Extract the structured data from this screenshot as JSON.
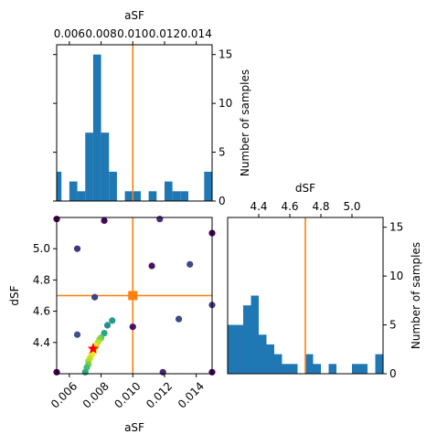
{
  "chart_data": [
    {
      "type": "bar",
      "panel": "histogram-aSF",
      "title": "",
      "xlabel": "aSF",
      "ylabel": "Number of samples",
      "xlim": [
        0.0052,
        0.015
      ],
      "ylim": [
        0,
        16
      ],
      "xticks": [
        {
          "value": 0.006,
          "label": "0.006"
        },
        {
          "value": 0.008,
          "label": "0.008"
        },
        {
          "value": 0.01,
          "label": "0.010"
        },
        {
          "value": 0.012,
          "label": "0.012"
        },
        {
          "value": 0.014,
          "label": "0.014"
        }
      ],
      "yticks": [
        {
          "value": 0,
          "label": "0"
        },
        {
          "value": 5,
          "label": "5"
        },
        {
          "value": 10,
          "label": "10"
        },
        {
          "value": 15,
          "label": "15"
        }
      ],
      "bin_edges": [
        0.005,
        0.0055,
        0.006,
        0.0065,
        0.007,
        0.0075,
        0.008,
        0.0085,
        0.009,
        0.0095,
        0.01,
        0.0105,
        0.011,
        0.0115,
        0.012,
        0.0125,
        0.013,
        0.0135,
        0.014,
        0.0145,
        0.015
      ],
      "counts": [
        3,
        0,
        2,
        1,
        7,
        15,
        7,
        3,
        0,
        1,
        1,
        0,
        1,
        0,
        2,
        1,
        1,
        0,
        0,
        3
      ],
      "reference_line": 0.01,
      "bar_color": "#1f77b4",
      "line_color": "#ff7f0e"
    },
    {
      "type": "scatter",
      "panel": "scatter-aSF-dSF",
      "title": "",
      "xlabel": "aSF",
      "ylabel": "dSF",
      "xlim": [
        0.0052,
        0.015
      ],
      "ylim": [
        4.2,
        5.2
      ],
      "xticks": [
        {
          "value": 0.006,
          "label": "0.006"
        },
        {
          "value": 0.008,
          "label": "0.008"
        },
        {
          "value": 0.01,
          "label": "0.010"
        },
        {
          "value": 0.012,
          "label": "0.012"
        },
        {
          "value": 0.014,
          "label": "0.014"
        }
      ],
      "yticks": [
        {
          "value": 4.4,
          "label": "4.4"
        },
        {
          "value": 4.6,
          "label": "4.6"
        },
        {
          "value": 4.8,
          "label": "4.8"
        },
        {
          "value": 5.0,
          "label": "5.0"
        }
      ],
      "points": [
        {
          "x": 0.0052,
          "y": 5.19,
          "c": 0.0
        },
        {
          "x": 0.0082,
          "y": 5.18,
          "c": 0.02
        },
        {
          "x": 0.0117,
          "y": 5.19,
          "c": 0.12
        },
        {
          "x": 0.015,
          "y": 5.1,
          "c": 0.0
        },
        {
          "x": 0.0065,
          "y": 5.0,
          "c": 0.15
        },
        {
          "x": 0.0112,
          "y": 4.89,
          "c": 0.05
        },
        {
          "x": 0.0136,
          "y": 4.9,
          "c": 0.22
        },
        {
          "x": 0.0076,
          "y": 4.69,
          "c": 0.2
        },
        {
          "x": 0.015,
          "y": 4.64,
          "c": 0.18
        },
        {
          "x": 0.01,
          "y": 4.5,
          "c": 0.05
        },
        {
          "x": 0.0129,
          "y": 4.55,
          "c": 0.22
        },
        {
          "x": 0.0065,
          "y": 4.45,
          "c": 0.25
        },
        {
          "x": 0.0087,
          "y": 4.54,
          "c": 0.55
        },
        {
          "x": 0.0084,
          "y": 4.51,
          "c": 0.5
        },
        {
          "x": 0.0082,
          "y": 4.46,
          "c": 0.6
        },
        {
          "x": 0.008,
          "y": 4.43,
          "c": 0.75
        },
        {
          "x": 0.0079,
          "y": 4.42,
          "c": 0.82
        },
        {
          "x": 0.0078,
          "y": 4.4,
          "c": 0.9
        },
        {
          "x": 0.0077,
          "y": 4.38,
          "c": 0.95
        },
        {
          "x": 0.0076,
          "y": 4.36,
          "c": 0.97
        },
        {
          "x": 0.0075,
          "y": 4.34,
          "c": 1.0
        },
        {
          "x": 0.0074,
          "y": 4.32,
          "c": 0.98
        },
        {
          "x": 0.0073,
          "y": 4.3,
          "c": 0.93
        },
        {
          "x": 0.0072,
          "y": 4.28,
          "c": 0.88
        },
        {
          "x": 0.0072,
          "y": 4.26,
          "c": 0.8
        },
        {
          "x": 0.0071,
          "y": 4.24,
          "c": 0.7
        },
        {
          "x": 0.007,
          "y": 4.21,
          "c": 0.6
        },
        {
          "x": 0.0052,
          "y": 4.21,
          "c": 0.0
        },
        {
          "x": 0.0119,
          "y": 4.21,
          "c": 0.12
        },
        {
          "x": 0.015,
          "y": 4.21,
          "c": 0.0
        }
      ],
      "best_fit_marker": {
        "x": 0.0075,
        "y": 4.36,
        "color": "#ff0000",
        "shape": "star"
      },
      "reference_marker": {
        "x": 0.01,
        "y": 4.7,
        "color": "#ff7f0e",
        "shape": "square"
      },
      "reference_lines": {
        "x": 0.01,
        "y": 4.7
      },
      "colormap": "viridis",
      "line_color": "#ff7f0e"
    },
    {
      "type": "bar",
      "panel": "histogram-dSF",
      "title": "",
      "xlabel": "dSF",
      "ylabel": "Number of samples",
      "xlim": [
        4.2,
        5.2
      ],
      "ylim": [
        0,
        16
      ],
      "xticks": [
        {
          "value": 4.4,
          "label": "4.4"
        },
        {
          "value": 4.6,
          "label": "4.6"
        },
        {
          "value": 4.8,
          "label": "4.8"
        },
        {
          "value": 5.0,
          "label": "5.0"
        }
      ],
      "yticks": [
        {
          "value": 0,
          "label": "0"
        },
        {
          "value": 5,
          "label": "5"
        },
        {
          "value": 10,
          "label": "10"
        },
        {
          "value": 15,
          "label": "15"
        }
      ],
      "bin_edges": [
        4.2,
        4.25,
        4.3,
        4.35,
        4.4,
        4.45,
        4.5,
        4.55,
        4.6,
        4.65,
        4.7,
        4.75,
        4.8,
        4.85,
        4.9,
        4.95,
        5.0,
        5.05,
        5.1,
        5.15,
        5.2
      ],
      "counts": [
        5,
        5,
        7,
        8,
        4,
        3,
        2,
        1,
        1,
        0,
        2,
        1,
        0,
        1,
        0,
        0,
        1,
        1,
        0,
        2
      ],
      "reference_line": 4.7,
      "bar_color": "#1f77b4",
      "line_color": "#ff7f0e"
    }
  ]
}
